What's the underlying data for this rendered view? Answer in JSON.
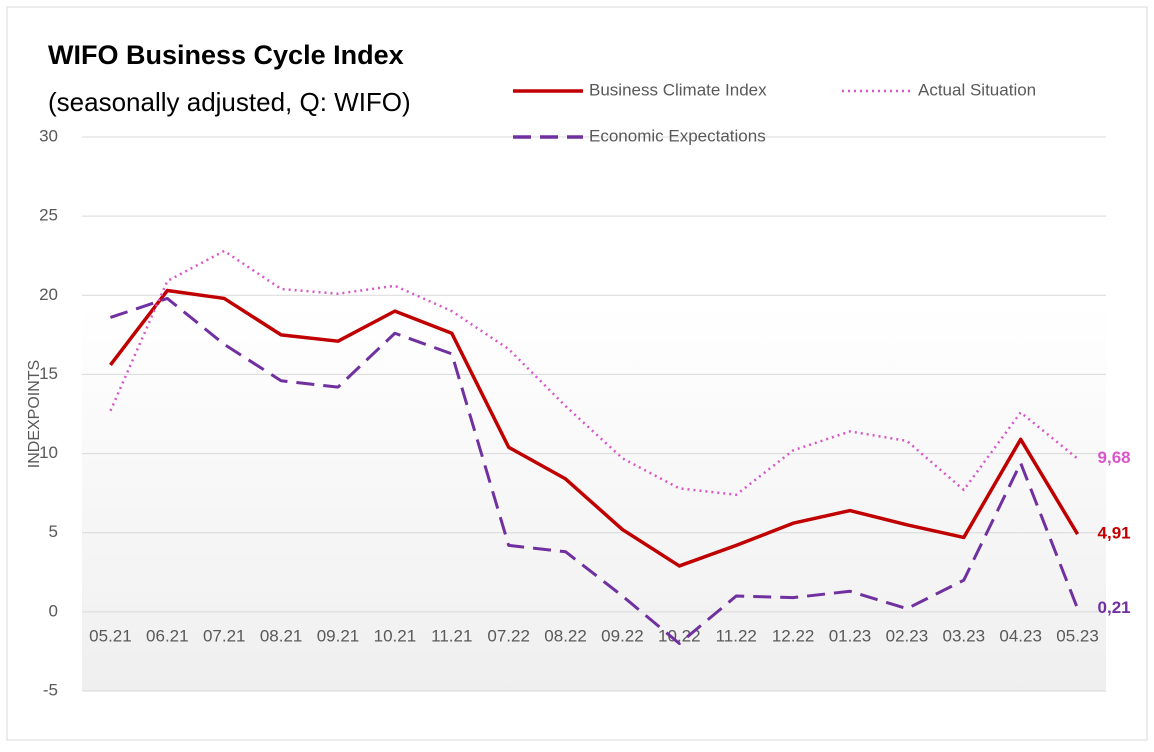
{
  "chart_data": {
    "type": "line",
    "title": "WIFO Business Cycle Index",
    "subtitle": "(seasonally adjusted, Q: WIFO)",
    "y_label": "INDEXPOINTS",
    "categories": [
      "05.21",
      "06.21",
      "07.21",
      "08.21",
      "09.21",
      "10.21",
      "11.21",
      "07.22",
      "08.22",
      "09.22",
      "10.22",
      "11.22",
      "12.22",
      "01.23",
      "02.23",
      "03.23",
      "04.23",
      "05.23"
    ],
    "series": [
      {
        "name": "Business Climate Index",
        "color": "#c00000",
        "style": "solid",
        "values": [
          15.6,
          20.3,
          19.8,
          17.5,
          17.1,
          19.0,
          17.6,
          10.4,
          8.4,
          5.2,
          2.9,
          4.2,
          5.6,
          6.4,
          5.5,
          4.7,
          10.9,
          4.91
        ],
        "value_labels": [
          null,
          null,
          null,
          null,
          null,
          null,
          null,
          null,
          null,
          null,
          null,
          null,
          null,
          null,
          null,
          null,
          null,
          "4,91"
        ]
      },
      {
        "name": "Actual Situation",
        "color": "#d957c8",
        "style": "dotted",
        "values": [
          12.7,
          20.9,
          22.8,
          20.4,
          20.1,
          20.6,
          19.0,
          16.6,
          13.0,
          9.7,
          7.8,
          7.4,
          10.2,
          11.4,
          10.8,
          7.7,
          12.6,
          9.68
        ],
        "value_labels": [
          null,
          null,
          null,
          null,
          null,
          null,
          null,
          null,
          null,
          null,
          null,
          null,
          null,
          null,
          null,
          null,
          null,
          "9,68"
        ]
      },
      {
        "name": "Economic Expectations",
        "color": "#7030a0",
        "style": "dashed",
        "values": [
          18.6,
          19.8,
          16.9,
          14.6,
          14.2,
          17.6,
          16.3,
          4.2,
          3.8,
          1.0,
          -2.0,
          1.0,
          0.9,
          1.3,
          0.2,
          2.0,
          9.4,
          0.21
        ],
        "value_labels": [
          null,
          null,
          null,
          null,
          null,
          null,
          null,
          null,
          null,
          null,
          null,
          null,
          null,
          null,
          null,
          null,
          null,
          "0,21"
        ]
      }
    ],
    "ylim": [
      -5,
      30
    ],
    "yticks": [
      -5,
      0,
      5,
      10,
      15,
      20,
      25,
      30
    ],
    "grid": true,
    "legend": "top"
  }
}
